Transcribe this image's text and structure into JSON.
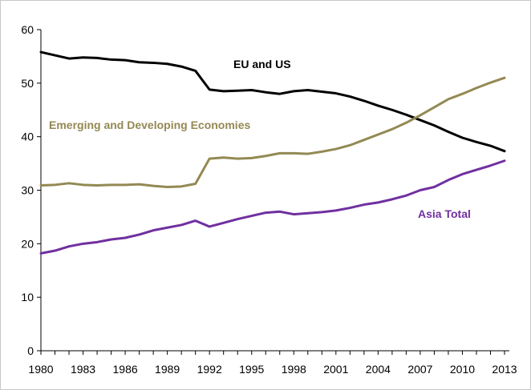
{
  "chart_data": {
    "type": "line",
    "title": "",
    "xlabel": "",
    "ylabel": "",
    "ylim": [
      0,
      60
    ],
    "yticks": [
      0,
      10,
      20,
      30,
      40,
      50,
      60
    ],
    "xlim": [
      1980,
      2013
    ],
    "xticks": [
      1980,
      1983,
      1986,
      1989,
      1992,
      1995,
      1998,
      2001,
      2004,
      2007,
      2010,
      2013
    ],
    "grid": false,
    "x": [
      1980,
      1981,
      1982,
      1983,
      1984,
      1985,
      1986,
      1987,
      1988,
      1989,
      1990,
      1991,
      1992,
      1993,
      1994,
      1995,
      1996,
      1997,
      1998,
      1999,
      2000,
      2001,
      2002,
      2003,
      2004,
      2005,
      2006,
      2007,
      2008,
      2009,
      2010,
      2011,
      2012,
      2013
    ],
    "series": [
      {
        "name": "EU and US",
        "color": "#000000",
        "values": [
          55.8,
          55.2,
          54.6,
          54.8,
          54.7,
          54.4,
          54.3,
          53.9,
          53.8,
          53.6,
          53.1,
          52.3,
          48.8,
          48.5,
          48.6,
          48.7,
          48.3,
          48.0,
          48.5,
          48.7,
          48.4,
          48.1,
          47.5,
          46.7,
          45.8,
          45.0,
          44.1,
          43.1,
          42.1,
          40.9,
          39.8,
          39.0,
          38.3,
          37.3
        ]
      },
      {
        "name": "Emerging and Developing Economies",
        "color": "#938953",
        "values": [
          30.9,
          31.0,
          31.3,
          31.0,
          30.9,
          31.0,
          31.0,
          31.1,
          30.8,
          30.6,
          30.7,
          31.2,
          35.9,
          36.1,
          35.9,
          36.0,
          36.4,
          36.9,
          36.9,
          36.8,
          37.2,
          37.7,
          38.4,
          39.4,
          40.4,
          41.4,
          42.6,
          44.0,
          45.5,
          47.0,
          48.0,
          49.1,
          50.1,
          51.0
        ]
      },
      {
        "name": "Asia Total",
        "color": "#7030a0",
        "values": [
          18.2,
          18.7,
          19.5,
          20.0,
          20.3,
          20.8,
          21.1,
          21.7,
          22.5,
          23.0,
          23.5,
          24.3,
          23.2,
          23.9,
          24.6,
          25.2,
          25.8,
          26.0,
          25.5,
          25.7,
          25.9,
          26.2,
          26.7,
          27.3,
          27.7,
          28.3,
          29.0,
          30.0,
          30.6,
          31.9,
          33.0,
          33.8,
          34.6,
          35.5
        ]
      }
    ],
    "annotations": [
      {
        "text": "EU and US",
        "series": 0
      },
      {
        "text": "Emerging and Developing Economies",
        "series": 1
      },
      {
        "text": "Asia Total",
        "series": 2
      }
    ]
  }
}
